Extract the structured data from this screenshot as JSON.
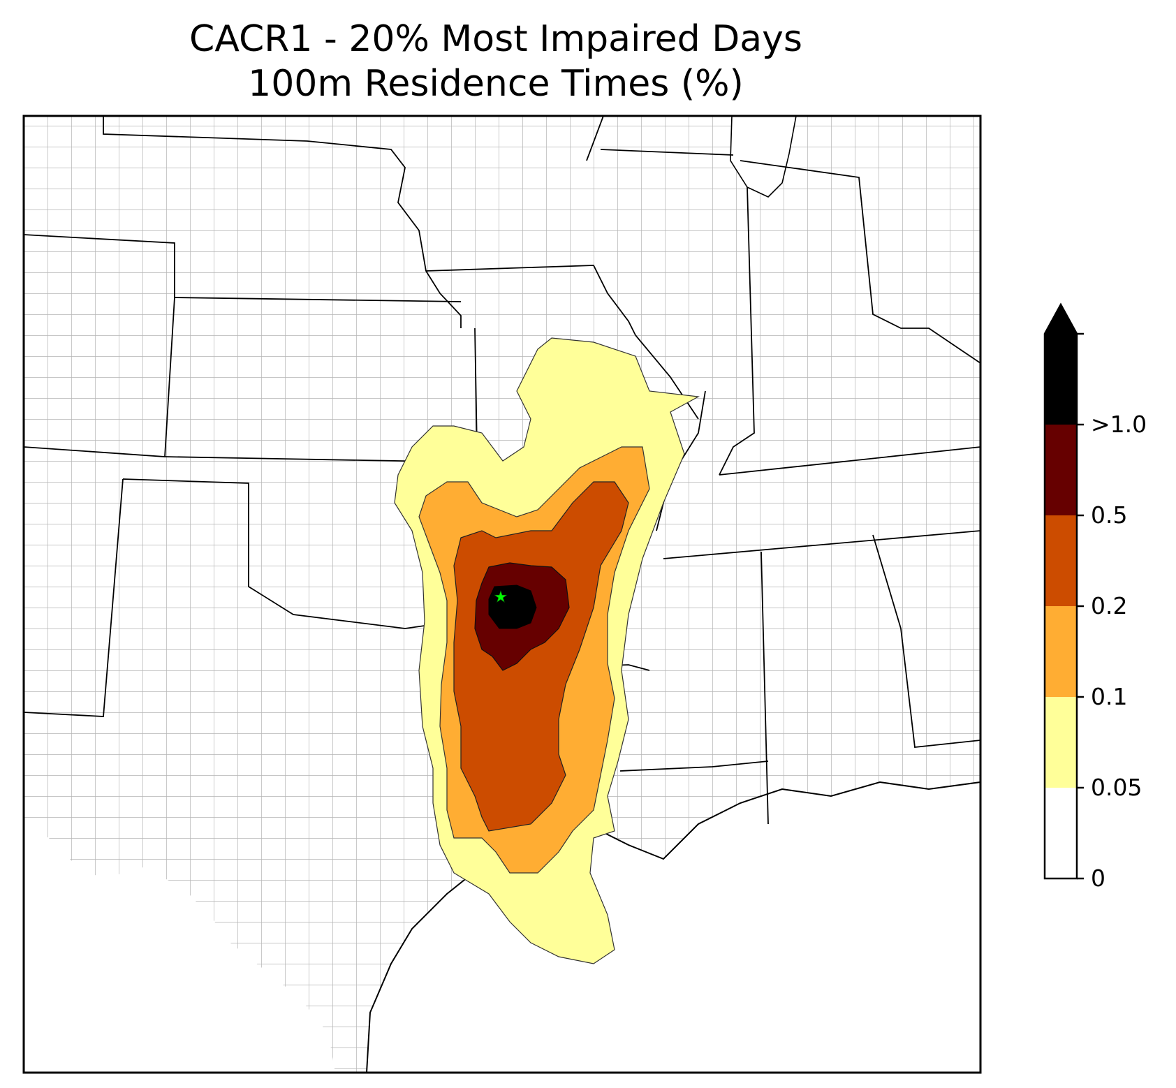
{
  "title": {
    "line1": "CACR1 - 20% Most Impaired Days",
    "line2": "100m Residence Times (%)"
  },
  "site_marker": {
    "icon": "green-star-icon",
    "color": "#00ff00"
  },
  "colorbar": {
    "extend": "max",
    "bins": [
      {
        "label": "0",
        "color": "#ffffff"
      },
      {
        "label": "0.05",
        "color": "#ffff99"
      },
      {
        "label": "0.1",
        "color": "#ffad33"
      },
      {
        "label": "0.2",
        "color": "#cc4c00"
      },
      {
        "label": "0.5",
        "color": "#660000"
      },
      {
        "label": ">1.0",
        "color": "#000000"
      }
    ],
    "ticks": [
      "0",
      "0.05",
      "0.1",
      "0.2",
      "0.5",
      ">1.0"
    ]
  },
  "colors": {
    "state_border": "#000000",
    "county_border": "#a0a0a0"
  }
}
